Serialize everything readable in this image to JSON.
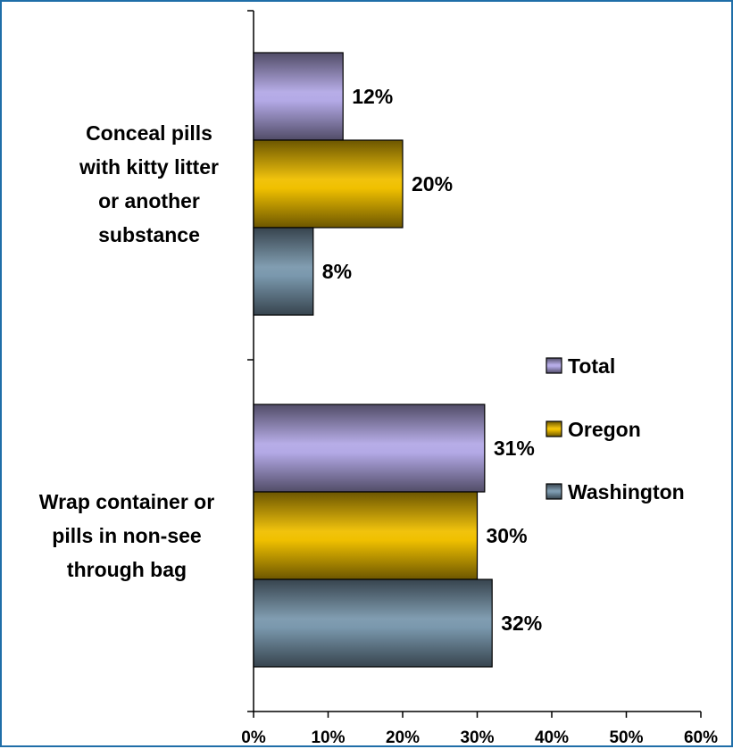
{
  "chart_data": {
    "type": "bar",
    "orientation": "horizontal",
    "categories": [
      "Conceal pills with kitty litter or another substance",
      "Wrap container or pills in non-see through bag"
    ],
    "category_lines": [
      [
        "Conceal pills",
        "with kitty litter",
        "or another",
        "substance"
      ],
      [
        "Wrap container or",
        "pills in non-see",
        "through bag"
      ]
    ],
    "series": [
      {
        "name": "Total",
        "values": [
          12,
          31
        ],
        "labels": [
          "12%",
          "31%"
        ],
        "color": "#b3a9e6"
      },
      {
        "name": "Oregon",
        "values": [
          20,
          30
        ],
        "labels": [
          "20%",
          "30%"
        ],
        "color": "#f0c000"
      },
      {
        "name": "Washington",
        "values": [
          8,
          32
        ],
        "labels": [
          "8%",
          "32%"
        ],
        "color": "#7a98ad"
      }
    ],
    "xlim": [
      0,
      60
    ],
    "xticks": [
      "0%",
      "10%",
      "20%",
      "30%",
      "40%",
      "50%",
      "60%"
    ],
    "grid": false,
    "legend_position": "right"
  }
}
